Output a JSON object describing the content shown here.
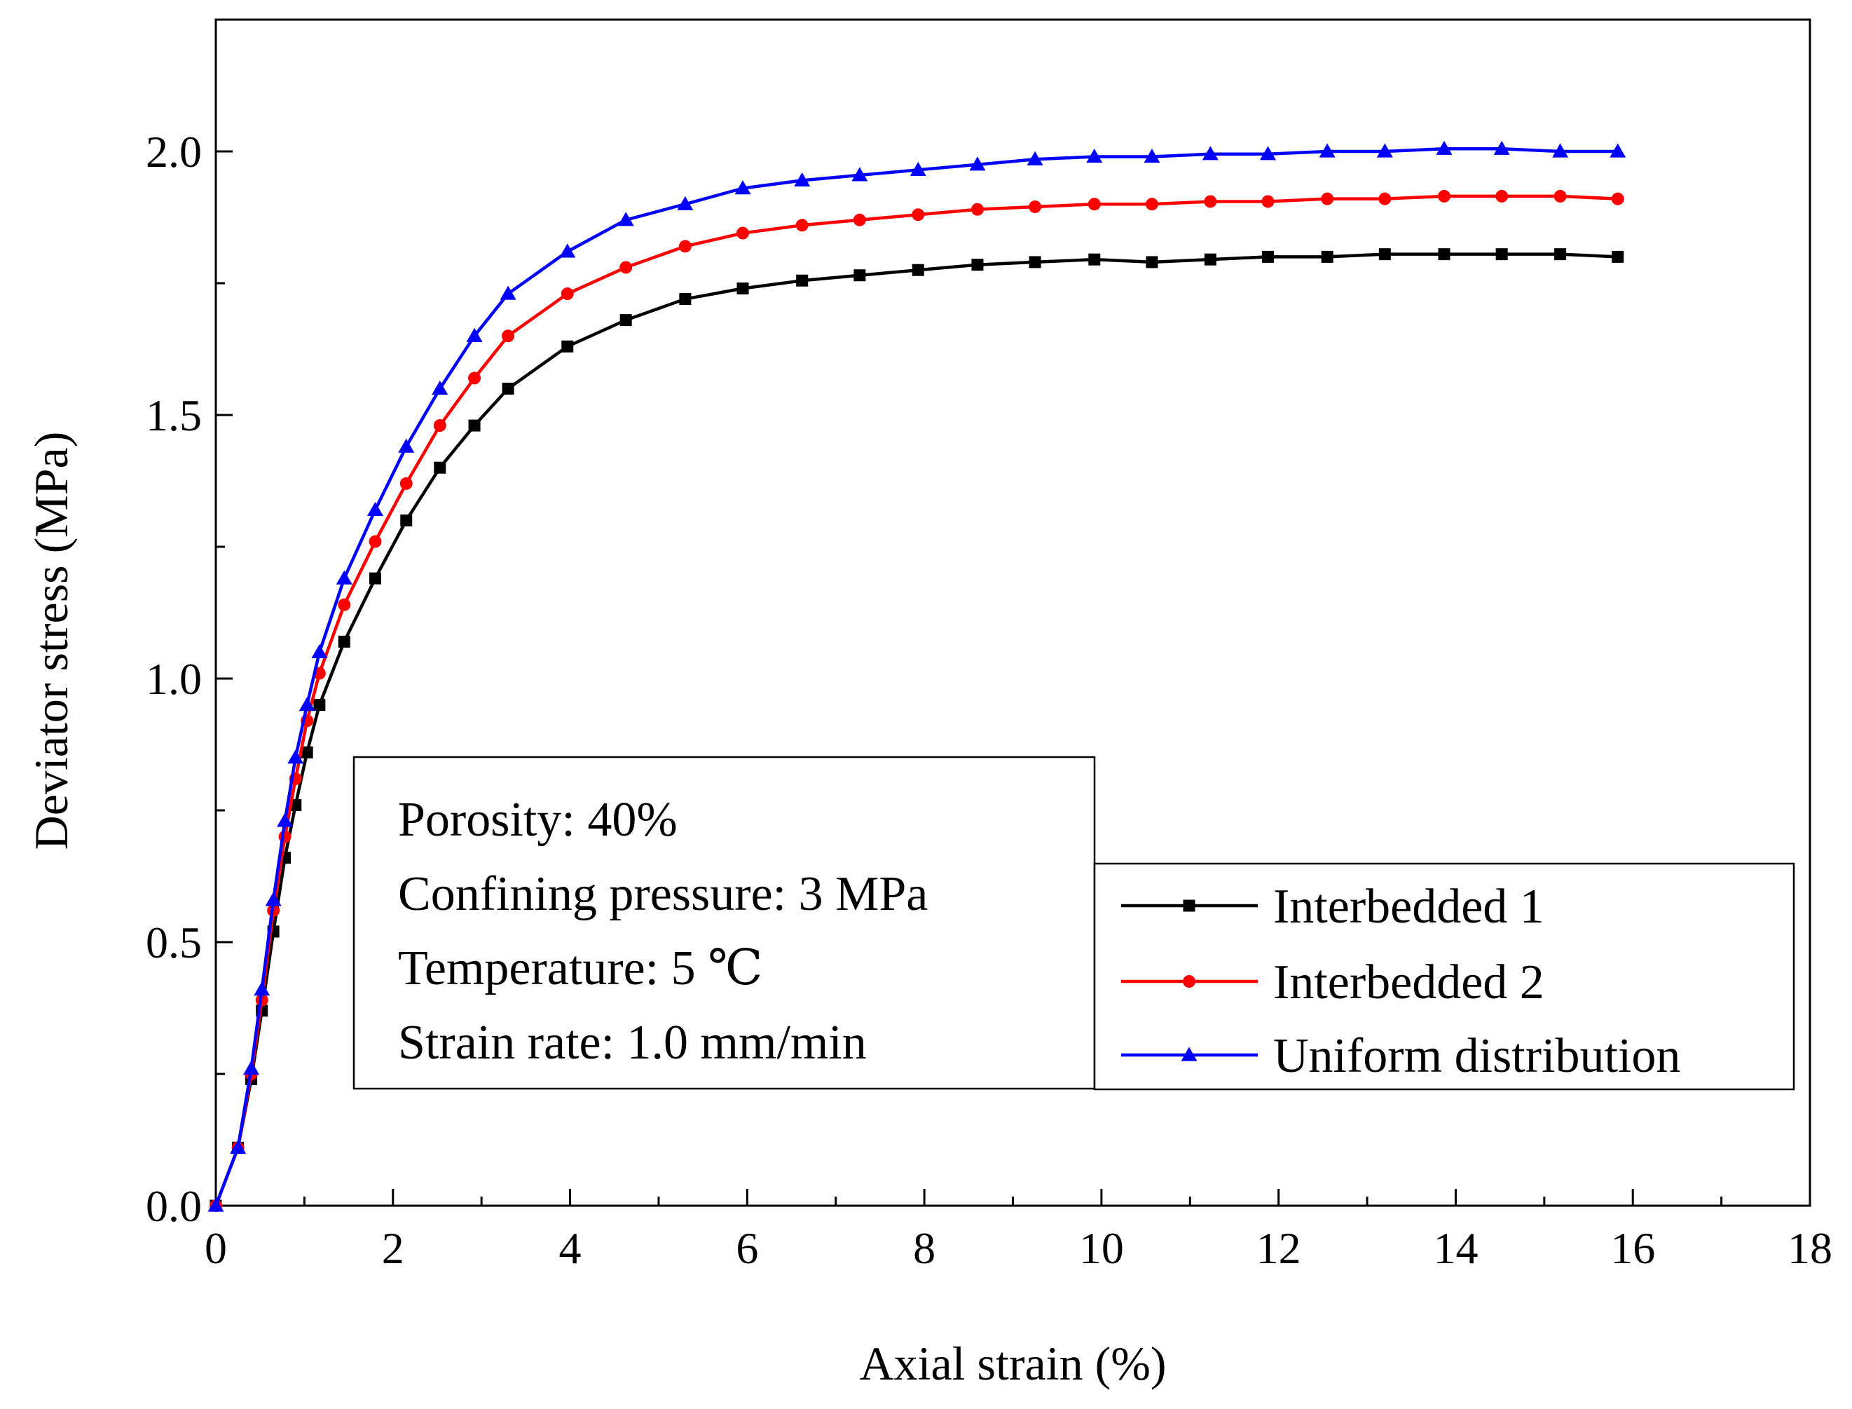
{
  "chart_data": {
    "type": "line",
    "title": "",
    "xlabel": "Axial strain (%)",
    "ylabel": "Deviator stress (MPa)",
    "xlim": [
      0,
      18
    ],
    "ylim": [
      0,
      2.25
    ],
    "x_ticks": [
      0,
      2,
      4,
      6,
      8,
      10,
      12,
      14,
      16,
      18
    ],
    "y_ticks": [
      0.0,
      0.5,
      1.0,
      1.5,
      2.0
    ],
    "x_tick_labels": [
      "0",
      "2",
      "4",
      "6",
      "8",
      "10",
      "12",
      "14",
      "16",
      "18"
    ],
    "y_tick_labels": [
      "0.0",
      "0.5",
      "1.0",
      "1.5",
      "2.0"
    ],
    "grid": false,
    "legend_position": "right",
    "annotation_lines": [
      "Porosity: 40%",
      "Confining pressure: 3 MPa",
      "Temperature: 5 ℃",
      "Strain rate: 1.0 mm/min"
    ],
    "series": [
      {
        "name": "Interbedded 1",
        "color": "#000000",
        "marker": "square",
        "x": [
          0,
          0.25,
          0.4,
          0.52,
          0.65,
          0.78,
          0.9,
          1.03,
          1.17,
          1.45,
          1.8,
          2.15,
          2.53,
          2.92,
          3.3,
          3.97,
          4.63,
          5.3,
          5.95,
          6.62,
          7.27,
          7.93,
          8.6,
          9.25,
          9.92,
          10.57,
          11.23,
          11.88,
          12.55,
          13.2,
          13.87,
          14.52,
          15.18,
          15.83
        ],
        "y": [
          0.0,
          0.11,
          0.24,
          0.37,
          0.52,
          0.66,
          0.76,
          0.86,
          0.95,
          1.07,
          1.19,
          1.3,
          1.4,
          1.48,
          1.55,
          1.63,
          1.68,
          1.72,
          1.74,
          1.755,
          1.765,
          1.775,
          1.785,
          1.79,
          1.795,
          1.79,
          1.795,
          1.8,
          1.8,
          1.805,
          1.805,
          1.805,
          1.805,
          1.8
        ]
      },
      {
        "name": "Interbedded 2",
        "color": "#ff0000",
        "marker": "circle",
        "x": [
          0,
          0.25,
          0.4,
          0.52,
          0.65,
          0.78,
          0.9,
          1.03,
          1.17,
          1.45,
          1.8,
          2.15,
          2.53,
          2.92,
          3.3,
          3.97,
          4.63,
          5.3,
          5.95,
          6.62,
          7.27,
          7.93,
          8.6,
          9.25,
          9.92,
          10.57,
          11.23,
          11.88,
          12.55,
          13.2,
          13.87,
          14.52,
          15.18,
          15.83
        ],
        "y": [
          0.0,
          0.11,
          0.25,
          0.39,
          0.56,
          0.7,
          0.81,
          0.92,
          1.01,
          1.14,
          1.26,
          1.37,
          1.48,
          1.57,
          1.65,
          1.73,
          1.78,
          1.82,
          1.845,
          1.86,
          1.87,
          1.88,
          1.89,
          1.895,
          1.9,
          1.9,
          1.905,
          1.905,
          1.91,
          1.91,
          1.915,
          1.915,
          1.915,
          1.91
        ]
      },
      {
        "name": "Uniform distribution",
        "color": "#0000ff",
        "marker": "triangle",
        "x": [
          0,
          0.25,
          0.4,
          0.52,
          0.65,
          0.78,
          0.9,
          1.03,
          1.17,
          1.45,
          1.8,
          2.15,
          2.53,
          2.92,
          3.3,
          3.97,
          4.63,
          5.3,
          5.95,
          6.62,
          7.27,
          7.93,
          8.6,
          9.25,
          9.92,
          10.57,
          11.23,
          11.88,
          12.55,
          13.2,
          13.87,
          14.52,
          15.18,
          15.83
        ],
        "y": [
          0.0,
          0.11,
          0.26,
          0.41,
          0.58,
          0.73,
          0.85,
          0.95,
          1.05,
          1.19,
          1.32,
          1.44,
          1.55,
          1.65,
          1.73,
          1.81,
          1.87,
          1.9,
          1.93,
          1.945,
          1.955,
          1.965,
          1.975,
          1.985,
          1.99,
          1.99,
          1.995,
          1.995,
          2.0,
          2.0,
          2.005,
          2.005,
          2.0,
          2.0
        ]
      }
    ]
  }
}
